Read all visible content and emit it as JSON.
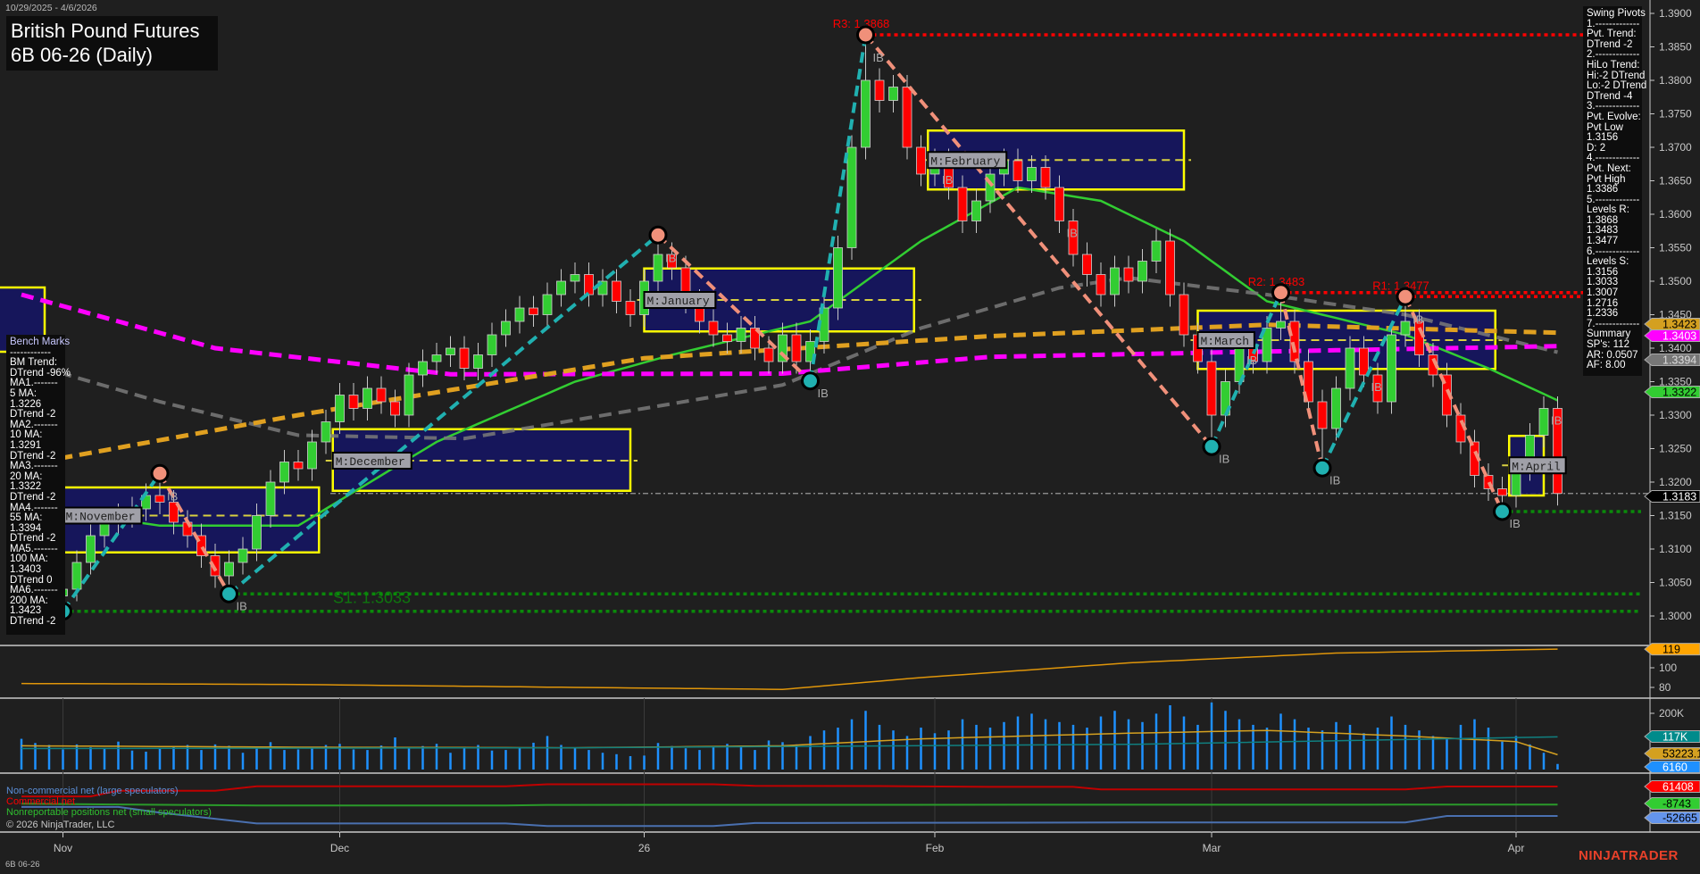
{
  "header": {
    "date_range": "10/29/2025 - 4/6/2026",
    "title_line1": "British Pound Futures",
    "title_line2": "6B 06-26 (Daily)"
  },
  "swing_pivots": {
    "lines": [
      "Swing Pivots",
      "1.-------------",
      "Pvt. Trend:",
      "DTrend -2",
      "2.-------------",
      "HiLo Trend:",
      "Hi:-2 DTrend",
      "Lo:-2 DTrend",
      "DTrend -4",
      "3.-------------",
      "Pvt. Evolve:",
      "Pvt Low",
      "1.3156",
      "D: 2",
      "4.-------------",
      "Pvt. Next:",
      "Pvt High",
      "1.3386",
      "5.-------------",
      "Levels R:",
      "1.3868",
      "1.3483",
      "1.3477",
      "6.-------------",
      "Levels S:",
      "1.3156",
      "1.3033",
      "1.3007",
      "1.2716",
      "1.2336",
      "7.-------------",
      "Summary",
      "SP's: 112",
      "AR: 0.0507",
      "AF: 8.00"
    ]
  },
  "bench_marks": {
    "lines": [
      "Bench Marks",
      "------------",
      "BM Trend:",
      "DTrend -96%",
      "MA1.-------",
      "5 MA:",
      "1.3226",
      "DTrend -2",
      "MA2.-------",
      "10 MA:",
      "1.3291",
      "DTrend -2",
      "MA3.-------",
      "20 MA:",
      "1.3322",
      "DTrend -2",
      "MA4.-------",
      "55 MA:",
      "1.3394",
      "DTrend -2",
      "MA5.-------",
      "100 MA:",
      "1.3403",
      "DTrend 0",
      "MA6.-------",
      "200 MA:",
      "1.3423",
      "DTrend -2"
    ]
  },
  "footer": {
    "instrument": "6B 06-26",
    "copyright": "© 2026 NinjaTrader, LLC",
    "brand": "NINJATRADER"
  },
  "chart_data": {
    "type": "candlestick",
    "first_date": "2025-10-29",
    "last_date": "2026-04-06",
    "y_range": [
      1.295,
      1.392
    ],
    "y_ticks": [
      "1.3000",
      "1.3050",
      "1.3100",
      "1.3150",
      "1.3200",
      "1.3250",
      "1.3300",
      "1.3350",
      "1.3400",
      "1.3450",
      "1.3500",
      "1.3550",
      "1.3600",
      "1.3650",
      "1.3700",
      "1.3750",
      "1.3800",
      "1.3850",
      "1.3900"
    ],
    "x_ticks": [
      {
        "label": "Nov",
        "bar": 3
      },
      {
        "label": "Dec",
        "bar": 23
      },
      {
        "label": "26",
        "bar": 45
      },
      {
        "label": "Feb",
        "bar": 66
      },
      {
        "label": "Mar",
        "bar": 86
      },
      {
        "label": "Apr",
        "bar": 108
      }
    ],
    "close": [
      1.312,
      1.306,
      1.303,
      1.304,
      1.308,
      1.312,
      1.314,
      1.315,
      1.316,
      1.318,
      1.317,
      1.314,
      1.312,
      1.309,
      1.306,
      1.308,
      1.31,
      1.315,
      1.32,
      1.323,
      1.322,
      1.326,
      1.329,
      1.333,
      1.331,
      1.334,
      1.332,
      1.33,
      1.336,
      1.338,
      1.339,
      1.34,
      1.337,
      1.339,
      1.342,
      1.344,
      1.346,
      1.345,
      1.348,
      1.35,
      1.351,
      1.348,
      1.35,
      1.347,
      1.345,
      1.35,
      1.354,
      1.352,
      1.347,
      1.344,
      1.342,
      1.341,
      1.343,
      1.34,
      1.338,
      1.342,
      1.338,
      1.341,
      1.346,
      1.355,
      1.37,
      1.38,
      1.377,
      1.379,
      1.37,
      1.366,
      1.368,
      1.364,
      1.359,
      1.362,
      1.366,
      1.368,
      1.365,
      1.367,
      1.364,
      1.359,
      1.354,
      1.351,
      1.348,
      1.352,
      1.35,
      1.353,
      1.356,
      1.348,
      1.342,
      1.338,
      1.33,
      1.335,
      1.34,
      1.338,
      1.343,
      1.344,
      1.338,
      1.332,
      1.328,
      1.334,
      1.34,
      1.336,
      1.332,
      1.342,
      1.344,
      1.339,
      1.336,
      1.33,
      1.326,
      1.321,
      1.319,
      1.318,
      1.322,
      1.327,
      1.331,
      1.3183
    ],
    "last_price": "1.3183",
    "swing_pivots": [
      {
        "bar": 3,
        "type": "low",
        "price": 1.3007
      },
      {
        "bar": 10,
        "type": "high",
        "price": 1.3213
      },
      {
        "bar": 15,
        "type": "low",
        "price": 1.3033
      },
      {
        "bar": 46,
        "type": "high",
        "price": 1.3569
      },
      {
        "bar": 57,
        "type": "low",
        "price": 1.3351
      },
      {
        "bar": 61,
        "type": "high",
        "price": 1.3868
      },
      {
        "bar": 86,
        "type": "low",
        "price": 1.3253
      },
      {
        "bar": 91,
        "type": "high",
        "price": 1.3483
      },
      {
        "bar": 94,
        "type": "low",
        "price": 1.3221
      },
      {
        "bar": 100,
        "type": "high",
        "price": 1.3477
      },
      {
        "bar": 107,
        "type": "low",
        "price": 1.3156
      }
    ],
    "levels": [
      {
        "label": "R3: 1.3868",
        "price": 1.3868,
        "from_bar": 61,
        "color": "#ff0000"
      },
      {
        "label": "R2: 1.3483",
        "price": 1.3483,
        "from_bar": 91,
        "color": "#ff0000"
      },
      {
        "label": "R1: 1.3477",
        "price": 1.3477,
        "from_bar": 100,
        "color": "#ff0000"
      },
      {
        "label": "S1: 1.3033",
        "price": 1.3033,
        "from_bar": 15,
        "color": "#0a8a0a"
      },
      {
        "label": "",
        "price": 1.3007,
        "from_bar": 3,
        "color": "#0a8a0a"
      },
      {
        "label": "",
        "price": 1.3156,
        "from_bar": 107,
        "color": "#0a8a0a"
      }
    ],
    "monthly_ranges": [
      {
        "label": "M:November",
        "from_bar": 3,
        "to_bar": 21.5,
        "high": 1.3192,
        "low": 1.3095,
        "mid": 1.315
      },
      {
        "label": "M:December",
        "from_bar": 22.5,
        "to_bar": 44,
        "high": 1.3279,
        "low": 1.3187,
        "mid": 1.3232
      },
      {
        "label": "M:January",
        "from_bar": 45,
        "to_bar": 64.5,
        "high": 1.3519,
        "low": 1.3425,
        "mid": 1.3472
      },
      {
        "label": "M:February",
        "from_bar": 65.5,
        "to_bar": 84,
        "high": 1.3725,
        "low": 1.3637,
        "mid": 1.3681
      },
      {
        "label": "M:March",
        "from_bar": 85,
        "to_bar": 106.5,
        "high": 1.3456,
        "low": 1.3369,
        "mid": 1.3412
      },
      {
        "label": "M:April",
        "from_bar": 107.5,
        "to_bar": 110,
        "high": 1.3269,
        "low": 1.318,
        "mid": 1.3225
      }
    ],
    "moving_averages": [
      {
        "name": "20 MA",
        "value": "1.3322",
        "color": "#32cd32",
        "dash": false,
        "points": [
          [
            0,
            1.3165
          ],
          [
            10,
            1.3135
          ],
          [
            20,
            1.3135
          ],
          [
            30,
            1.326
          ],
          [
            40,
            1.335
          ],
          [
            47,
            1.339
          ],
          [
            57,
            1.344
          ],
          [
            65,
            1.356
          ],
          [
            72,
            1.364
          ],
          [
            78,
            1.362
          ],
          [
            84,
            1.356
          ],
          [
            90,
            1.347
          ],
          [
            100,
            1.342
          ],
          [
            106,
            1.337
          ],
          [
            111,
            1.3322
          ]
        ]
      },
      {
        "name": "55 MA",
        "value": "1.3394",
        "color": "#7a7a7a",
        "dash": true,
        "points": [
          [
            0,
            1.338
          ],
          [
            10,
            1.332
          ],
          [
            20,
            1.327
          ],
          [
            32,
            1.3265
          ],
          [
            45,
            1.331
          ],
          [
            55,
            1.3345
          ],
          [
            65,
            1.343
          ],
          [
            75,
            1.349
          ],
          [
            80,
            1.3505
          ],
          [
            90,
            1.348
          ],
          [
            100,
            1.345
          ],
          [
            111,
            1.3394
          ]
        ]
      },
      {
        "name": "100 MA",
        "value": "1.3403",
        "color": "#ff00ff",
        "dash": true,
        "points": [
          [
            0,
            1.348
          ],
          [
            14,
            1.34
          ],
          [
            31,
            1.3361
          ],
          [
            55,
            1.3362
          ],
          [
            70,
            1.3387
          ],
          [
            90,
            1.3395
          ],
          [
            111,
            1.3403
          ]
        ]
      },
      {
        "name": "200 MA",
        "value": "1.3423",
        "color": "#e0a020",
        "dash": true,
        "points": [
          [
            0,
            1.3225
          ],
          [
            20,
            1.33
          ],
          [
            45,
            1.3385
          ],
          [
            70,
            1.3418
          ],
          [
            90,
            1.3435
          ],
          [
            111,
            1.3423
          ]
        ]
      }
    ],
    "ib_labels": [
      10,
      15,
      46,
      57,
      61,
      66,
      75,
      86,
      88,
      94,
      97,
      100,
      107,
      110
    ],
    "oscillator": {
      "current": "119",
      "ticks": [
        "100",
        "80"
      ],
      "range": [
        70,
        125
      ],
      "points": [
        [
          0,
          84
        ],
        [
          20,
          83
        ],
        [
          40,
          80
        ],
        [
          55,
          78
        ],
        [
          65,
          90
        ],
        [
          80,
          105
        ],
        [
          95,
          115
        ],
        [
          111,
          119
        ]
      ]
    },
    "volume": {
      "ticks": [
        "200K"
      ],
      "current": "117K",
      "avg_value": "53223.16",
      "last_value": "6160",
      "values_k": [
        110,
        95,
        88,
        72,
        90,
        80,
        74,
        100,
        68,
        64,
        78,
        80,
        88,
        70,
        90,
        85,
        60,
        75,
        98,
        70,
        72,
        80,
        88,
        92,
        72,
        70,
        86,
        115,
        75,
        84,
        92,
        60,
        78,
        88,
        68,
        70,
        80,
        96,
        120,
        88,
        76,
        70,
        60,
        55,
        48,
        50,
        95,
        84,
        76,
        70,
        80,
        92,
        86,
        70,
        104,
        98,
        90,
        120,
        140,
        150,
        180,
        210,
        160,
        140,
        120,
        150,
        130,
        140,
        180,
        160,
        150,
        170,
        190,
        200,
        180,
        170,
        160,
        150,
        190,
        210,
        180,
        170,
        200,
        230,
        190,
        160,
        240,
        210,
        180,
        160,
        150,
        200,
        180,
        150,
        140,
        170,
        160,
        130,
        150,
        190,
        160,
        140,
        120,
        110,
        160,
        180,
        150,
        100,
        120,
        90,
        60,
        20
      ],
      "line_points_k": [
        [
          0,
          85
        ],
        [
          20,
          80
        ],
        [
          40,
          78
        ],
        [
          55,
          85
        ],
        [
          65,
          110
        ],
        [
          80,
          130
        ],
        [
          90,
          140
        ],
        [
          100,
          120
        ],
        [
          108,
          100
        ],
        [
          111,
          53
        ]
      ],
      "ref_points_k": [
        [
          0,
          75
        ],
        [
          40,
          78
        ],
        [
          80,
          90
        ],
        [
          111,
          117
        ]
      ]
    },
    "cot": {
      "legend": [
        {
          "label": "Non-commercial net (large speculators)",
          "color": "#5b8fd8",
          "current": "-52665"
        },
        {
          "label": "Commercial net",
          "color": "#ff0000",
          "current": "61408"
        },
        {
          "label": "Nonreportable positions net (small speculators)",
          "color": "#2fbf2f",
          "current": "-8743"
        }
      ],
      "range": [
        -100000,
        80000
      ],
      "commercial": [
        [
          0,
          23000
        ],
        [
          5,
          23000
        ],
        [
          7,
          45000
        ],
        [
          14,
          45000
        ],
        [
          17,
          62000
        ],
        [
          35,
          62000
        ],
        [
          38,
          70000
        ],
        [
          50,
          70000
        ],
        [
          53,
          64000
        ],
        [
          62,
          63000
        ],
        [
          70,
          60000
        ],
        [
          76,
          60000
        ],
        [
          78,
          50000
        ],
        [
          100,
          50000
        ],
        [
          103,
          61408
        ],
        [
          111,
          61408
        ]
      ],
      "small": [
        [
          0,
          -5000
        ],
        [
          7,
          -8000
        ],
        [
          17,
          -12000
        ],
        [
          35,
          -12000
        ],
        [
          38,
          -10000
        ],
        [
          100,
          -9000
        ],
        [
          103,
          -8743
        ],
        [
          111,
          -8743
        ]
      ],
      "large": [
        [
          0,
          -18000
        ],
        [
          7,
          -18000
        ],
        [
          10,
          -40000
        ],
        [
          17,
          -82000
        ],
        [
          35,
          -82000
        ],
        [
          38,
          -92000
        ],
        [
          50,
          -92000
        ],
        [
          53,
          -80000
        ],
        [
          80,
          -78000
        ],
        [
          100,
          -78000
        ],
        [
          103,
          -52665
        ],
        [
          111,
          -52665
        ]
      ]
    }
  }
}
